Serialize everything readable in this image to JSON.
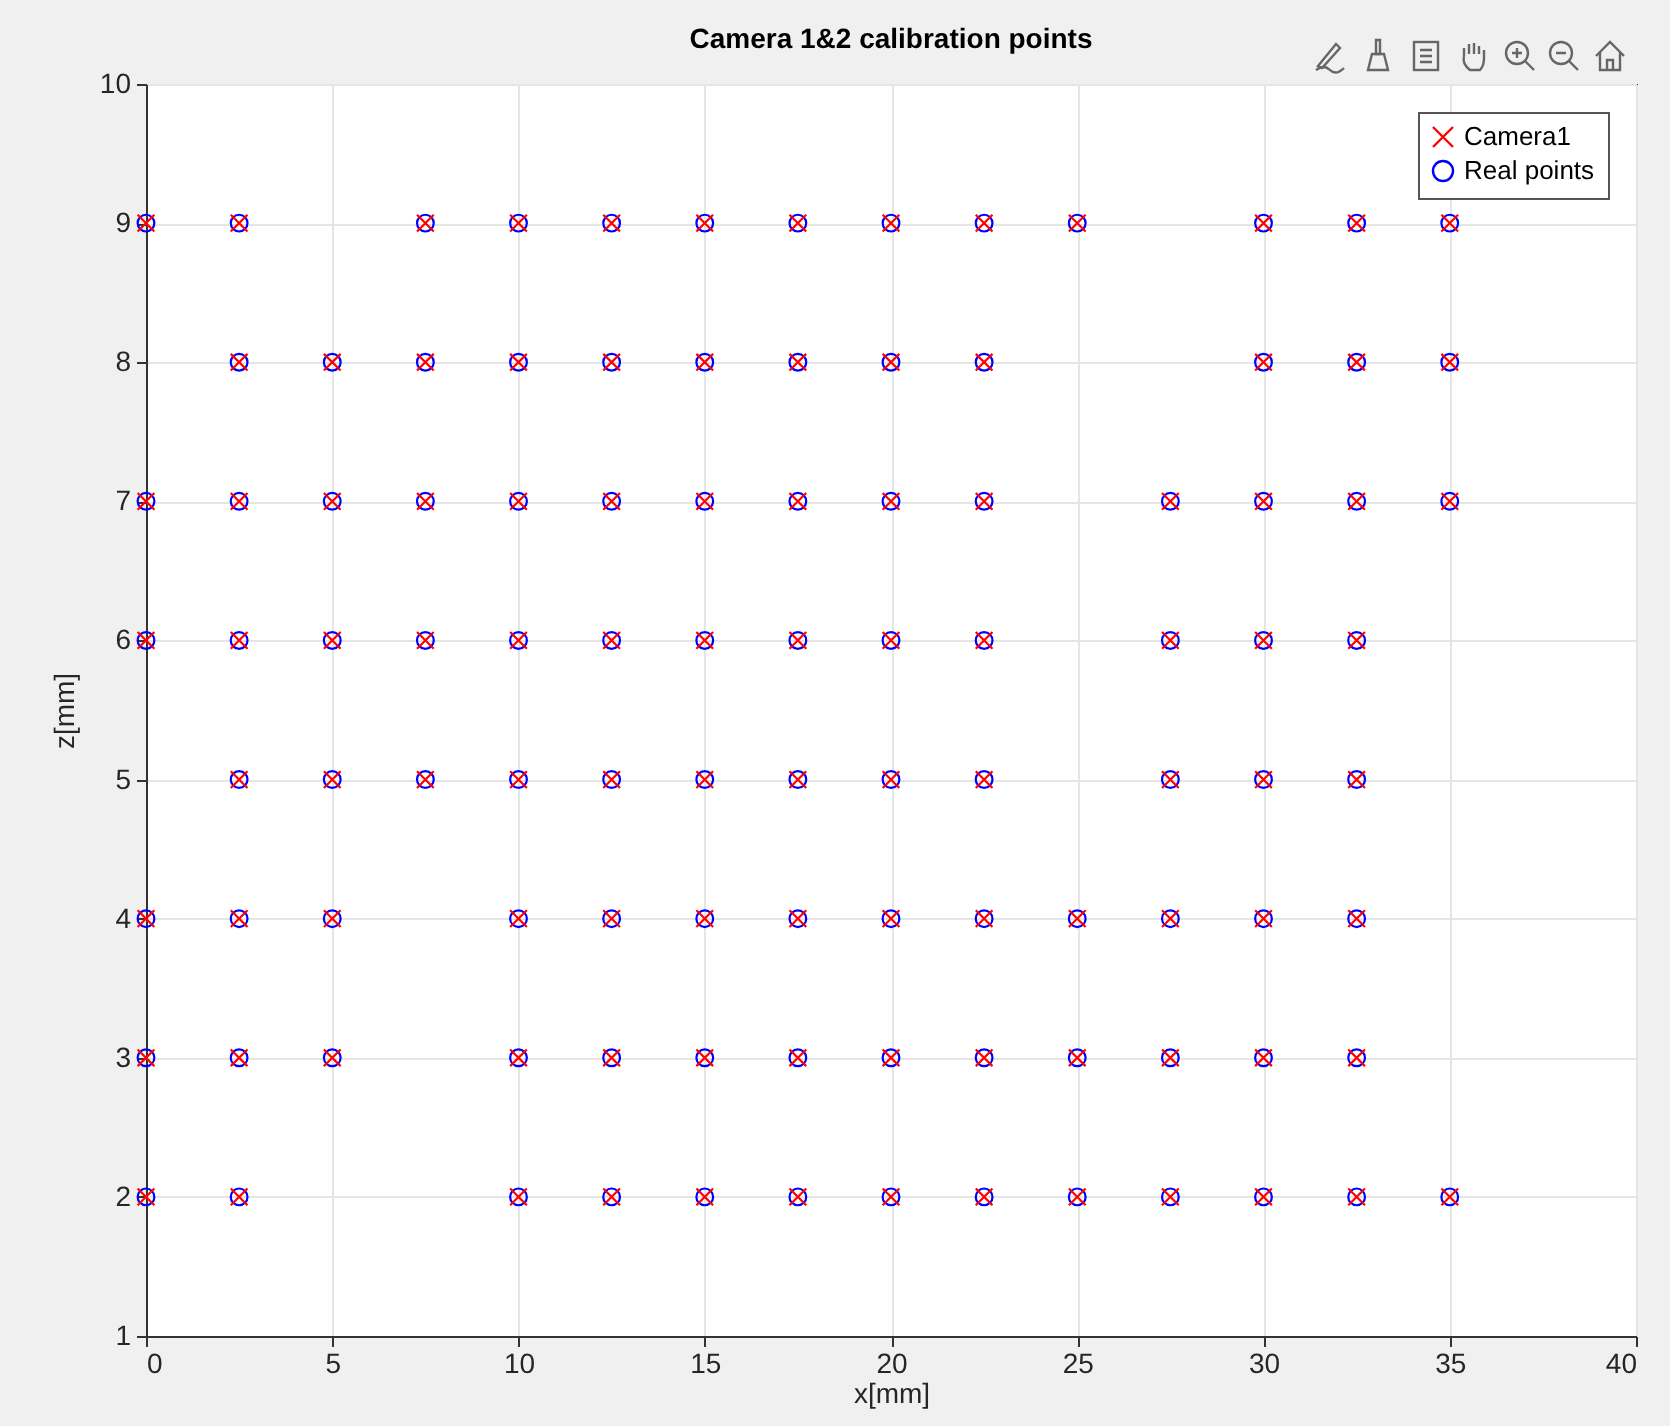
{
  "chart_data": {
    "type": "scatter",
    "title": "Camera 1&2 calibration points",
    "xlabel": "x[mm]",
    "ylabel": "z[mm]",
    "xlim": [
      0,
      40
    ],
    "xticks": [
      0,
      5,
      10,
      15,
      20,
      25,
      30,
      35,
      40
    ],
    "ylim": [
      1,
      10
    ],
    "yticks": [
      1,
      2,
      3,
      4,
      5,
      6,
      7,
      8,
      9,
      10
    ],
    "grid": true,
    "legend": "top right",
    "series": [
      {
        "name": "Camera1",
        "color": "#ff0000",
        "marker": "cross",
        "x": [
          0,
          2.5,
          7.5,
          10,
          12.5,
          15,
          17.5,
          20,
          22.5,
          25,
          30,
          32.5,
          35,
          2.5,
          5,
          7.5,
          10,
          12.5,
          15,
          17.5,
          20,
          22.5,
          30,
          32.5,
          35,
          0,
          2.5,
          5,
          7.5,
          10,
          12.5,
          15,
          17.5,
          20,
          22.5,
          27.5,
          30,
          32.5,
          35,
          0,
          2.5,
          5,
          7.5,
          10,
          12.5,
          15,
          17.5,
          20,
          22.5,
          27.5,
          30,
          32.5,
          2.5,
          5,
          7.5,
          10,
          12.5,
          15,
          17.5,
          20,
          22.5,
          27.5,
          30,
          32.5,
          0,
          2.5,
          5,
          10,
          12.5,
          15,
          17.5,
          20,
          22.5,
          25,
          27.5,
          30,
          32.5,
          0,
          2.5,
          5,
          10,
          12.5,
          15,
          17.5,
          20,
          22.5,
          25,
          27.5,
          30,
          32.5,
          0,
          2.5,
          10,
          12.5,
          15,
          17.5,
          20,
          22.5,
          25,
          27.5,
          30,
          32.5,
          35
        ],
        "values": [
          9,
          9,
          9,
          9,
          9,
          9,
          9,
          9,
          9,
          9,
          9,
          9,
          9,
          8,
          8,
          8,
          8,
          8,
          8,
          8,
          8,
          8,
          8,
          8,
          8,
          7,
          7,
          7,
          7,
          7,
          7,
          7,
          7,
          7,
          7,
          7,
          7,
          7,
          7,
          6,
          6,
          6,
          6,
          6,
          6,
          6,
          6,
          6,
          6,
          6,
          6,
          6,
          5,
          5,
          5,
          5,
          5,
          5,
          5,
          5,
          5,
          5,
          5,
          5,
          4,
          4,
          4,
          4,
          4,
          4,
          4,
          4,
          4,
          4,
          4,
          4,
          4,
          3,
          3,
          3,
          3,
          3,
          3,
          3,
          3,
          3,
          3,
          3,
          3,
          3,
          2,
          2,
          2,
          2,
          2,
          2,
          2,
          2,
          2,
          2,
          2,
          2,
          2
        ]
      },
      {
        "name": "Real points",
        "color": "#0000ff",
        "marker": "circle",
        "x": [
          0,
          2.5,
          7.5,
          10,
          12.5,
          15,
          17.5,
          20,
          22.5,
          25,
          30,
          32.5,
          35,
          2.5,
          5,
          7.5,
          10,
          12.5,
          15,
          17.5,
          20,
          22.5,
          30,
          32.5,
          35,
          0,
          2.5,
          5,
          7.5,
          10,
          12.5,
          15,
          17.5,
          20,
          22.5,
          27.5,
          30,
          32.5,
          35,
          0,
          2.5,
          5,
          7.5,
          10,
          12.5,
          15,
          17.5,
          20,
          22.5,
          27.5,
          30,
          32.5,
          2.5,
          5,
          7.5,
          10,
          12.5,
          15,
          17.5,
          20,
          22.5,
          27.5,
          30,
          32.5,
          0,
          2.5,
          5,
          10,
          12.5,
          15,
          17.5,
          20,
          22.5,
          25,
          27.5,
          30,
          32.5,
          0,
          2.5,
          5,
          10,
          12.5,
          15,
          17.5,
          20,
          22.5,
          25,
          27.5,
          30,
          32.5,
          0,
          2.5,
          10,
          12.5,
          15,
          17.5,
          20,
          22.5,
          25,
          27.5,
          30,
          32.5,
          35
        ],
        "values": [
          9,
          9,
          9,
          9,
          9,
          9,
          9,
          9,
          9,
          9,
          9,
          9,
          9,
          8,
          8,
          8,
          8,
          8,
          8,
          8,
          8,
          8,
          8,
          8,
          8,
          7,
          7,
          7,
          7,
          7,
          7,
          7,
          7,
          7,
          7,
          7,
          7,
          7,
          7,
          6,
          6,
          6,
          6,
          6,
          6,
          6,
          6,
          6,
          6,
          6,
          6,
          6,
          5,
          5,
          5,
          5,
          5,
          5,
          5,
          5,
          5,
          5,
          5,
          5,
          4,
          4,
          4,
          4,
          4,
          4,
          4,
          4,
          4,
          4,
          4,
          4,
          4,
          3,
          3,
          3,
          3,
          3,
          3,
          3,
          3,
          3,
          3,
          3,
          3,
          3,
          2,
          2,
          2,
          2,
          2,
          2,
          2,
          2,
          2,
          2,
          2,
          2,
          2
        ]
      }
    ]
  }
}
